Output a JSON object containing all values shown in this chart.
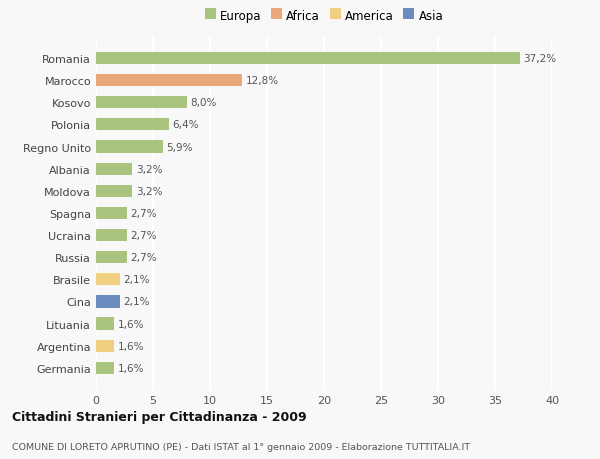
{
  "categories": [
    "Romania",
    "Marocco",
    "Kosovo",
    "Polonia",
    "Regno Unito",
    "Albania",
    "Moldova",
    "Spagna",
    "Ucraina",
    "Russia",
    "Brasile",
    "Cina",
    "Lituania",
    "Argentina",
    "Germania"
  ],
  "values": [
    37.2,
    12.8,
    8.0,
    6.4,
    5.9,
    3.2,
    3.2,
    2.7,
    2.7,
    2.7,
    2.1,
    2.1,
    1.6,
    1.6,
    1.6
  ],
  "labels": [
    "37,2%",
    "12,8%",
    "8,0%",
    "6,4%",
    "5,9%",
    "3,2%",
    "3,2%",
    "2,7%",
    "2,7%",
    "2,7%",
    "2,1%",
    "2,1%",
    "1,6%",
    "1,6%",
    "1,6%"
  ],
  "colors": [
    "#a8c47e",
    "#e8a87c",
    "#a8c47e",
    "#a8c47e",
    "#a8c47e",
    "#a8c47e",
    "#a8c47e",
    "#a8c47e",
    "#a8c47e",
    "#a8c47e",
    "#f0d080",
    "#6b8cbf",
    "#a8c47e",
    "#f0d080",
    "#a8c47e"
  ],
  "legend_labels": [
    "Europa",
    "Africa",
    "America",
    "Asia"
  ],
  "legend_colors": [
    "#a8c47e",
    "#e8a87c",
    "#f0d080",
    "#6b8cbf"
  ],
  "title": "Cittadini Stranieri per Cittadinanza - 2009",
  "subtitle": "COMUNE DI LORETO APRUTINO (PE) - Dati ISTAT al 1° gennaio 2009 - Elaborazione TUTTITALIA.IT",
  "xlim": [
    0,
    40
  ],
  "xticks": [
    0,
    5,
    10,
    15,
    20,
    25,
    30,
    35,
    40
  ],
  "background_color": "#f8f8f8",
  "grid_color": "#ffffff"
}
